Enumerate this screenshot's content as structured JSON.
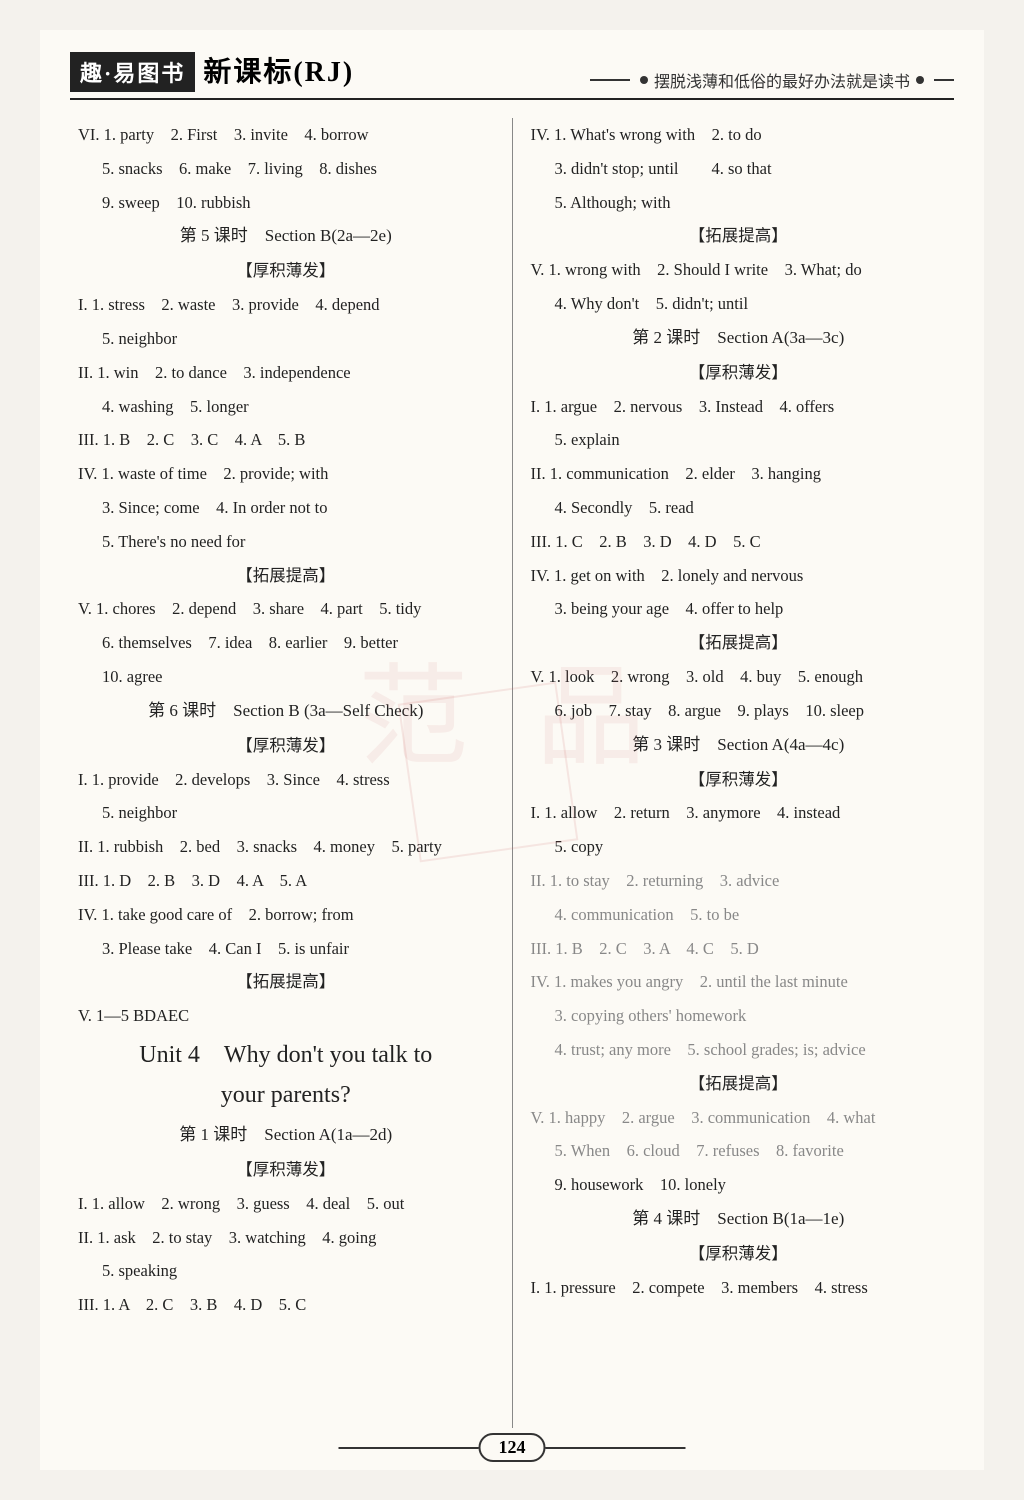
{
  "header": {
    "badge": "趣·易图书",
    "title": "新课标(RJ)",
    "motto": "摆脱浅薄和低俗的最好办法就是读书"
  },
  "pageNumber": "124",
  "left": {
    "vi": "VI. 1. party　2. First　3. invite　4. borrow",
    "vi2": "5. snacks　6. make　7. living　8. dishes",
    "vi3": "9. sweep　10. rubbish",
    "lesson5": "第 5 课时　Section B(2a—2e)",
    "hj1": "【厚积薄发】",
    "l5_i": "I. 1. stress　2. waste　3. provide　4. depend",
    "l5_i2": "5. neighbor",
    "l5_ii": "II. 1. win　2. to dance　3. independence",
    "l5_ii2": "4. washing　5. longer",
    "l5_iii": "III. 1. B　2. C　3. C　4. A　5. B",
    "l5_iv": "IV. 1. waste of time　2. provide; with",
    "l5_iv2": "3. Since; come　4. In order not to",
    "l5_iv3": "5. There's no need for",
    "tz1": "【拓展提高】",
    "l5_v": "V. 1. chores　2. depend　3. share　4. part　5. tidy",
    "l5_v2": "6. themselves　7. idea　8. earlier　9. better",
    "l5_v3": "10. agree",
    "lesson6": "第 6 课时　Section B (3a—Self Check)",
    "hj2": "【厚积薄发】",
    "l6_i": "I. 1. provide　2. develops　3. Since　4. stress",
    "l6_i2": "5. neighbor",
    "l6_ii": "II. 1. rubbish　2. bed　3. snacks　4. money　5. party",
    "l6_iii": "III. 1. D　2. B　3. D　4. A　5. A",
    "l6_iv": "IV. 1. take good care of　2. borrow; from",
    "l6_iv2": "3. Please take　4. Can I　5. is unfair",
    "tz2": "【拓展提高】",
    "l6_v": "V. 1—5 BDAEC",
    "unit4a": "Unit 4　Why don't you talk to",
    "unit4b": "your parents?",
    "lesson1": "第 1 课时　Section A(1a—2d)",
    "hj3": "【厚积薄发】",
    "u4l1_i": "I. 1. allow　2. wrong　3. guess　4. deal　5. out",
    "u4l1_ii": "II. 1. ask　2. to stay　3. watching　4. going",
    "u4l1_ii2": "5. speaking",
    "u4l1_iii": "III. 1. A　2. C　3. B　4. D　5. C"
  },
  "right": {
    "iv": "IV. 1. What's wrong with　2. to do",
    "iv2": "3. didn't stop; until　　4. so that",
    "iv3": "5. Although; with",
    "tz1": "【拓展提高】",
    "v": "V. 1. wrong with　2. Should I write　3. What; do",
    "v2": "4. Why don't　5. didn't; until",
    "lesson2": "第 2 课时　Section A(3a—3c)",
    "hj1": "【厚积薄发】",
    "l2_i": "I. 1. argue　2. nervous　3. Instead　4. offers",
    "l2_i2": "5. explain",
    "l2_ii": "II. 1. communication　2. elder　3. hanging",
    "l2_ii2": "4. Secondly　5. read",
    "l2_iii": "III. 1. C　2. B　3. D　4. D　5. C",
    "l2_iv": "IV. 1. get on with　2. lonely and nervous",
    "l2_iv2": "3. being your age　4. offer to help",
    "tz2": "【拓展提高】",
    "l2_v": "V. 1. look　2. wrong　3. old　4. buy　5. enough",
    "l2_v2": "6. job　7. stay　8. argue　9. plays　10. sleep",
    "lesson3": "第 3 课时　Section A(4a—4c)",
    "hj2": "【厚积薄发】",
    "l3_i": "I. 1. allow　2. return　3. anymore　4. instead",
    "l3_i2": "5. copy",
    "l3_ii": "II. 1. to stay　2. returning　3. advice",
    "l3_ii2": "4. communication　5. to be",
    "l3_iii": "III. 1. B　2. C　3. A　4. C　5. D",
    "l3_iv": "IV. 1. makes you angry　2. until the last minute",
    "l3_iv2": "3. copying others' homework",
    "l3_iv3": "4. trust; any more　5. school grades; is; advice",
    "tz3": "【拓展提高】",
    "l3_v": "V. 1. happy　2. argue　3. communication　4. what",
    "l3_v2": "5. When　6. cloud　7. refuses　8. favorite",
    "l3_v3": "9. housework　10. lonely",
    "lesson4": "第 4 课时　Section B(1a—1e)",
    "hj3": "【厚积薄发】",
    "l4_i": "I. 1. pressure　2. compete　3. members　4. stress"
  }
}
